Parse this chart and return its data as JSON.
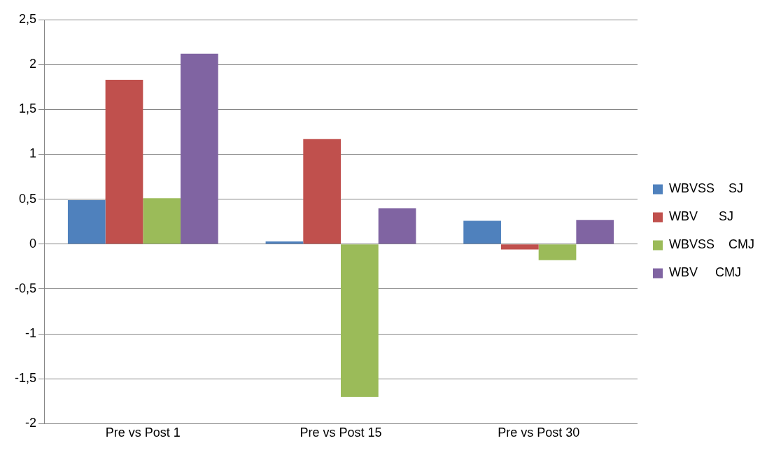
{
  "chart_data": {
    "type": "bar",
    "categories": [
      "Pre vs Post 1",
      "Pre vs Post 15",
      "Pre vs Post 30"
    ],
    "series": [
      {
        "name": "WBVSS    SJ",
        "color": "#4f81bd",
        "values": [
          0.49,
          0.03,
          0.26
        ]
      },
      {
        "name": "WBV      SJ",
        "color": "#c0504d",
        "values": [
          1.83,
          1.17,
          -0.06
        ]
      },
      {
        "name": "WBVSS    CMJ",
        "color": "#9bbb59",
        "values": [
          0.51,
          -1.7,
          -0.18
        ]
      },
      {
        "name": "WBV     CMJ",
        "color": "#8064a2",
        "values": [
          2.12,
          0.4,
          0.27
        ]
      }
    ],
    "ylim": [
      -2,
      2.5
    ],
    "yticks": [
      {
        "value": -2,
        "label": "-2"
      },
      {
        "value": -1.5,
        "label": "-1,5"
      },
      {
        "value": -1,
        "label": "-1"
      },
      {
        "value": -0.5,
        "label": "-0,5"
      },
      {
        "value": 0,
        "label": "0"
      },
      {
        "value": 0.5,
        "label": "0,5"
      },
      {
        "value": 1,
        "label": "1"
      },
      {
        "value": 1.5,
        "label": "1,5"
      },
      {
        "value": 2,
        "label": "2"
      },
      {
        "value": 2.5,
        "label": "2,5"
      }
    ],
    "grid": "y",
    "legend": "right"
  }
}
